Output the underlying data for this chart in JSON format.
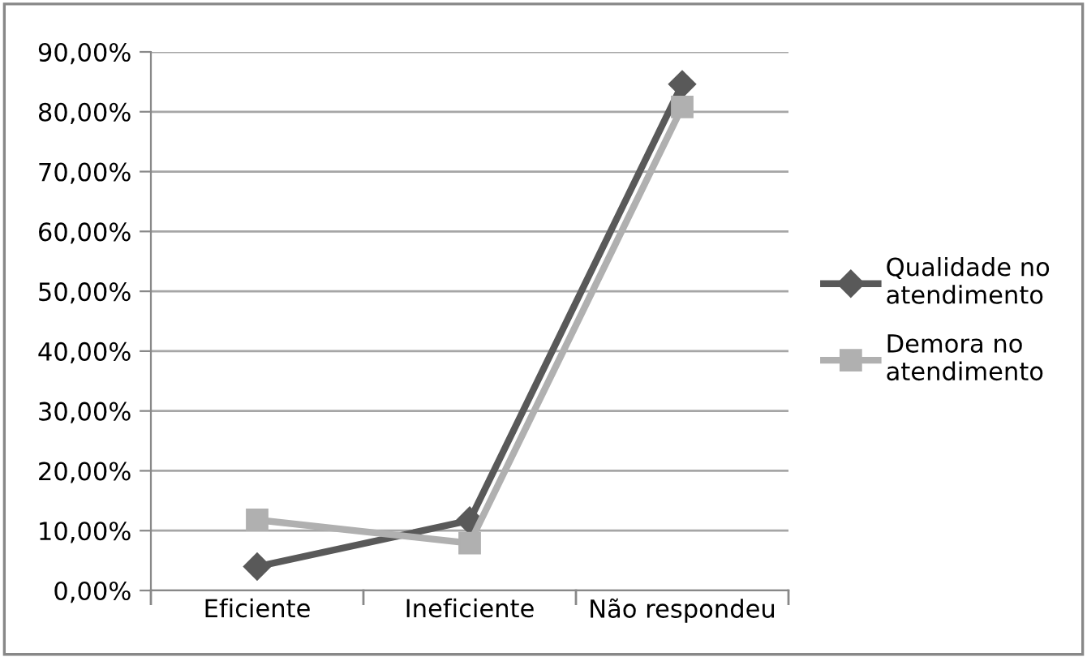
{
  "chart_data": {
    "type": "line",
    "categories": [
      "Eficiente",
      "Ineficiente",
      "Não respondeu"
    ],
    "series": [
      {
        "name": "Qualidade no atendimento",
        "color": "#595959",
        "values": [
          4.0,
          11.7,
          84.6
        ],
        "marker": "diamond"
      },
      {
        "name": "Demora no atendimento",
        "color": "#b0b0b0",
        "values": [
          11.8,
          7.9,
          80.8
        ],
        "marker": "square"
      }
    ],
    "ylim": [
      0,
      90
    ],
    "yticks": [
      {
        "value": 0,
        "label": "0,00%"
      },
      {
        "value": 10,
        "label": "10,00%"
      },
      {
        "value": 20,
        "label": "20,00%"
      },
      {
        "value": 30,
        "label": "30,00%"
      },
      {
        "value": 40,
        "label": "40,00%"
      },
      {
        "value": 50,
        "label": "50,00%"
      },
      {
        "value": 60,
        "label": "60,00%"
      },
      {
        "value": 70,
        "label": "70,00%"
      },
      {
        "value": 80,
        "label": "80,00%"
      },
      {
        "value": 90,
        "label": "90,00%"
      }
    ],
    "grid": "y",
    "legend": "right",
    "line_style": "solid"
  }
}
